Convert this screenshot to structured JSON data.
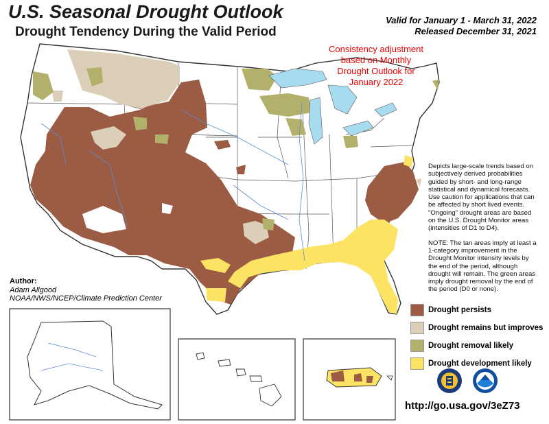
{
  "title": "U.S. Seasonal Drought Outlook",
  "subtitle": "Drought Tendency During the Valid Period",
  "valid_line": "Valid for January 1 - March 31, 2022",
  "released_line": "Released December 31, 2021",
  "consistency_note": [
    "Consistency adjustment",
    "based on Monthly",
    "Drought Outlook for",
    "January 2022"
  ],
  "description_paragraphs": [
    "Depicts large-scale trends based on subjectively derived probabilities guided by short- and long-range statistical and dynamical forecasts. Use caution for applications that can be affected by short lived events. \"Ongoing\" drought areas are based on the U.S. Drought Monitor areas (intensities of D1 to D4).",
    "NOTE: The tan areas imply at least a 1-category improvement in the Drought Monitor intensity levels by the end of the period, although drought will remain. The green areas imply drought removal by the end of the period (D0 or none)."
  ],
  "author_label": "Author:",
  "author_name": "Adam Allgood",
  "author_org": "NOAA/NWS/NCEP/Climate Prediction Center",
  "legend": [
    {
      "label": "Drought persists",
      "color": "#9c5b43"
    },
    {
      "label": "Drought remains but improves",
      "color": "#dccfb9"
    },
    {
      "label": "Drought removal likely",
      "color": "#b2b06b"
    },
    {
      "label": "Drought development likely",
      "color": "#fde364"
    }
  ],
  "url": "http://go.usa.gov/3eZ73",
  "colors": {
    "persists": "#9c5b43",
    "improves": "#dccfb9",
    "removal": "#b2b06b",
    "development": "#fde364",
    "water": "#a7dcf0",
    "border": "#333333"
  },
  "logos": [
    "usda-seal-icon",
    "noaa-logo-icon"
  ]
}
